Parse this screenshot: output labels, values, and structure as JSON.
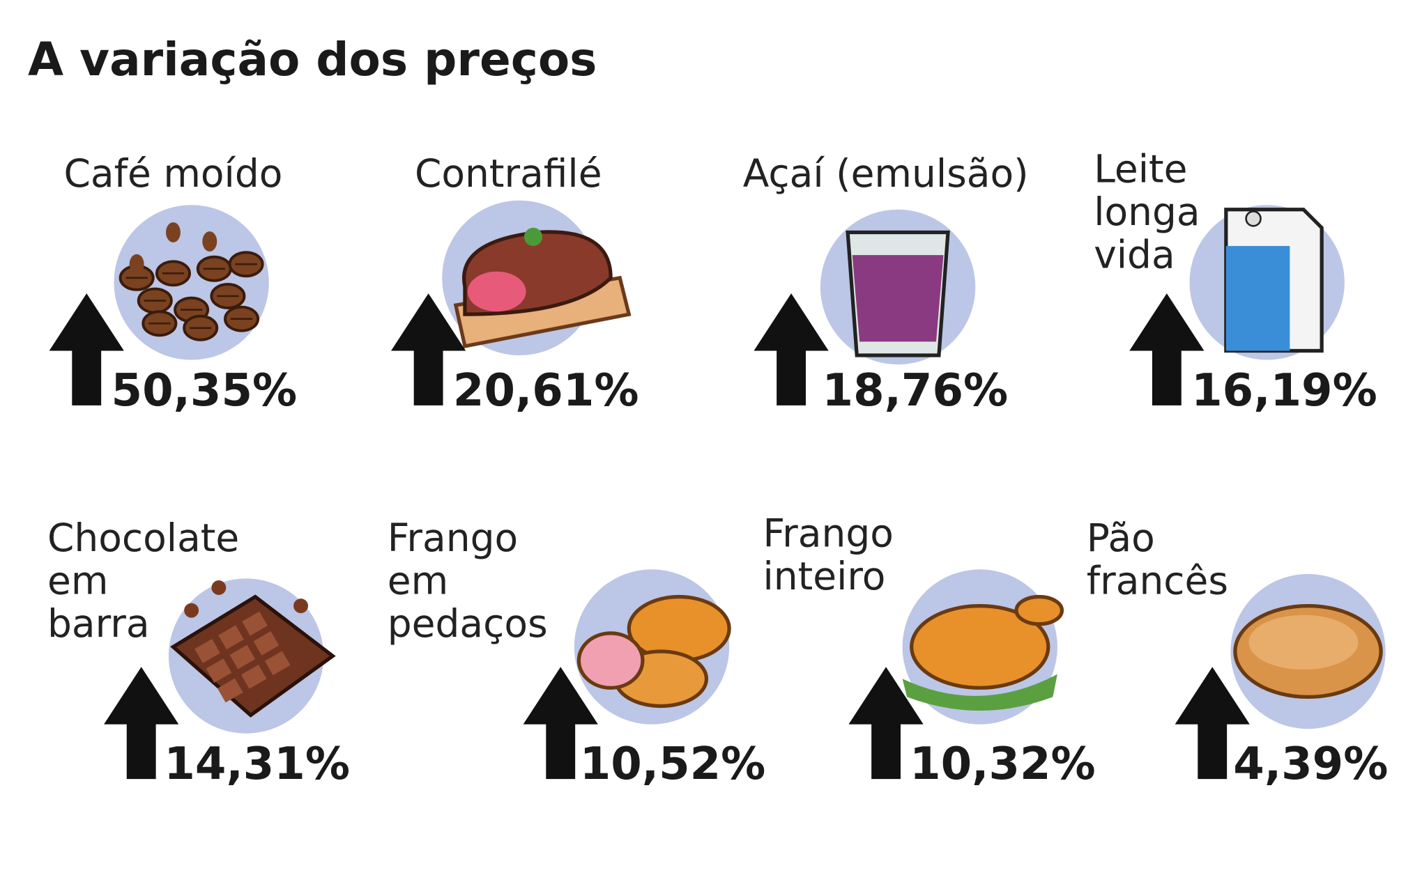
{
  "title": "A variação dos preços",
  "items": [
    {
      "name_lines": [
        "Café moído"
      ],
      "change": "50,35%"
    },
    {
      "name_lines": [
        "Contrafilé"
      ],
      "change": "20,61%"
    },
    {
      "name_lines": [
        "Açaí (emulsão)"
      ],
      "change": "18,76%"
    },
    {
      "name_lines": [
        "Leite",
        "longa",
        "vida"
      ],
      "change": "16,19%"
    },
    {
      "name_lines": [
        "Chocolate",
        "em",
        "barra"
      ],
      "change": "14,31%"
    },
    {
      "name_lines": [
        "Frango",
        "em",
        "pedaços"
      ],
      "change": "10,52%"
    },
    {
      "name_lines": [
        "Frango",
        "inteiro"
      ],
      "change": "10,32%"
    },
    {
      "name_lines": [
        "Pão",
        "francês"
      ],
      "change": "4,39%"
    }
  ]
}
